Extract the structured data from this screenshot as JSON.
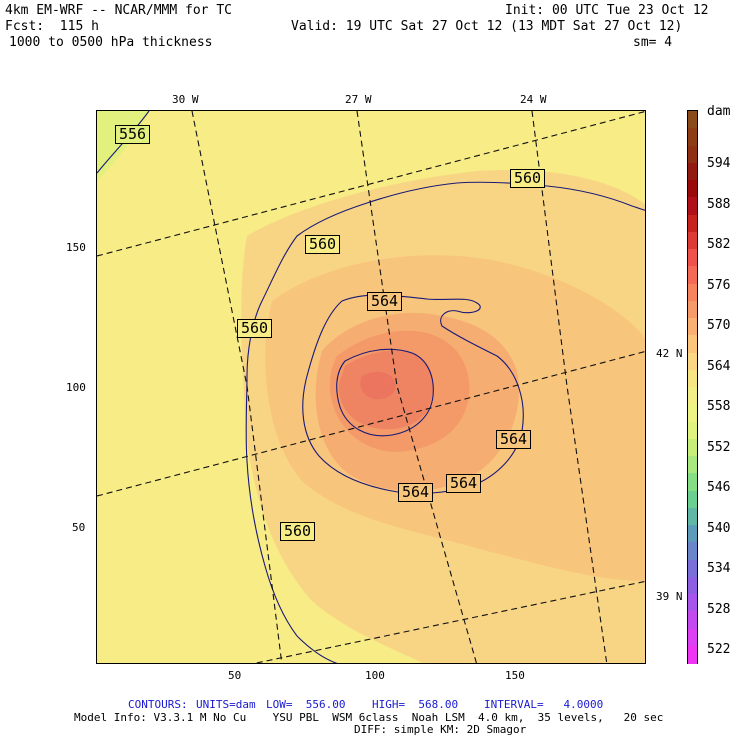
{
  "header": {
    "line1_left": "4km EM-WRF -- NCAR/MMM for TC",
    "line2_left": "Fcst:  115 h",
    "line3_left": "1000 to 0500 hPa thickness",
    "line1_right": "Init: 00 UTC Tue 23 Oct 12",
    "line2_right": "Valid: 19 UTC Sat 27 Oct 12 (13 MDT Sat 27 Oct 12)",
    "line3_right": "sm= 4"
  },
  "axes": {
    "top_lon_labels": [
      "30 W",
      "27 W",
      "24 W"
    ],
    "left_labels": [
      "150",
      "100",
      "50"
    ],
    "bottom_labels": [
      "50",
      "100",
      "150"
    ],
    "right_lat_labels": [
      "42 N",
      "39 N"
    ]
  },
  "contour_labels": [
    "556",
    "560",
    "560",
    "560",
    "560",
    "564",
    "564",
    "564",
    "564"
  ],
  "colorbar": {
    "unit": "dam",
    "labels": [
      "594",
      "588",
      "582",
      "576",
      "570",
      "564",
      "558",
      "552",
      "546",
      "540",
      "534",
      "528",
      "522"
    ],
    "colors": [
      "#8b4a1a",
      "#8e3c16",
      "#8f2f14",
      "#931a11",
      "#9a0a0a",
      "#b0101a",
      "#c8221f",
      "#dc3a35",
      "#ee524a",
      "#f56a57",
      "#f7835f",
      "#f79a6a",
      "#f9b072",
      "#fbc57c",
      "#fbd783",
      "#f7e583",
      "#f3ee85",
      "#eef483",
      "#dff37e",
      "#c8ee7a",
      "#a8e87e",
      "#86de84",
      "#6ccf92",
      "#60b7a6",
      "#5d9cb8",
      "#6a86c8",
      "#7a6fd8",
      "#8f5fe2",
      "#a755ea",
      "#c24aef",
      "#dc40f2",
      "#f034f4"
    ]
  },
  "footer": {
    "contours_prefix": "CONTOURS:",
    "units": "UNITS=dam",
    "low": "LOW=  556.00",
    "high": "HIGH=  568.00",
    "interval": "INTERVAL=   4.0000",
    "model_info": "Model Info: V3.3.1 M No Cu    YSU PBL  WSM 6class  Noah LSM  4.0 km,  35 levels,   20 sec",
    "diff": "DIFF: simple KM: 2D Smagor"
  }
}
